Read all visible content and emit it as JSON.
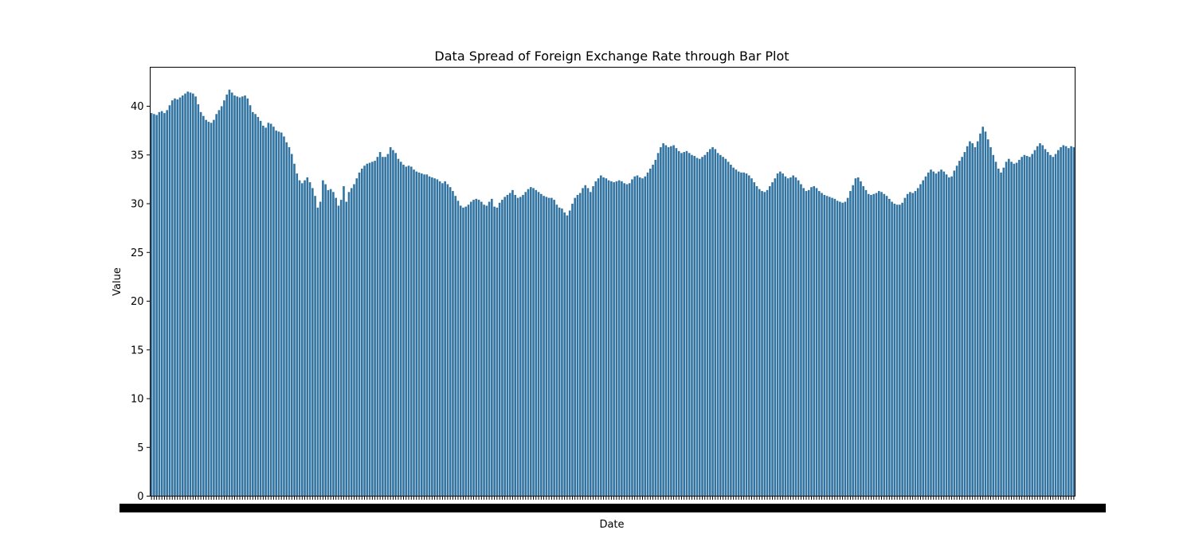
{
  "chart_data": {
    "type": "bar",
    "title": "Data Spread of Foreign Exchange Rate through Bar Plot",
    "xlabel": "Date",
    "ylabel": "Value",
    "ylim": [
      0,
      44
    ],
    "yticks": [
      "0",
      "5",
      "10",
      "15",
      "20",
      "25",
      "30",
      "35",
      "40"
    ],
    "bar_color": "#3274a1",
    "grid": false,
    "legend": "none",
    "categories_note": "",
    "values": [
      39.3,
      39.2,
      39.1,
      39.4,
      39.5,
      39.3,
      39.6,
      40.1,
      40.6,
      40.8,
      40.7,
      40.9,
      41.1,
      41.3,
      41.5,
      41.4,
      41.3,
      41.0,
      40.2,
      39.4,
      39.0,
      38.6,
      38.4,
      38.3,
      38.6,
      39.2,
      39.6,
      40.0,
      40.6,
      41.2,
      41.7,
      41.4,
      41.1,
      41.0,
      40.9,
      41.0,
      41.1,
      40.8,
      40.1,
      39.4,
      39.2,
      38.9,
      38.5,
      38.0,
      37.8,
      38.3,
      38.2,
      37.9,
      37.5,
      37.4,
      37.3,
      36.9,
      36.3,
      35.8,
      35.1,
      34.1,
      33.1,
      32.4,
      32.1,
      32.4,
      32.7,
      32.2,
      31.6,
      30.8,
      29.6,
      30.2,
      32.4,
      32.0,
      31.4,
      31.5,
      31.2,
      30.6,
      29.8,
      30.4,
      31.8,
      30.2,
      31.2,
      31.6,
      32.0,
      32.6,
      33.2,
      33.6,
      33.9,
      34.1,
      34.2,
      34.3,
      34.4,
      34.8,
      35.3,
      34.8,
      34.8,
      35.1,
      35.8,
      35.5,
      35.2,
      34.6,
      34.3,
      34.0,
      33.8,
      33.9,
      33.8,
      33.5,
      33.3,
      33.2,
      33.1,
      33.0,
      33.0,
      32.8,
      32.7,
      32.6,
      32.5,
      32.3,
      32.1,
      32.3,
      32.0,
      31.7,
      31.3,
      30.8,
      30.3,
      29.8,
      29.6,
      29.7,
      29.9,
      30.2,
      30.4,
      30.5,
      30.4,
      30.2,
      29.9,
      29.8,
      30.2,
      30.5,
      29.7,
      29.6,
      30.1,
      30.4,
      30.7,
      30.9,
      31.1,
      31.4,
      30.9,
      30.6,
      30.7,
      30.9,
      31.2,
      31.5,
      31.7,
      31.6,
      31.4,
      31.2,
      31.0,
      30.8,
      30.7,
      30.6,
      30.6,
      30.4,
      29.9,
      29.6,
      29.5,
      29.1,
      28.8,
      29.3,
      30.0,
      30.6,
      30.9,
      31.1,
      31.6,
      31.9,
      31.6,
      31.2,
      31.8,
      32.3,
      32.6,
      32.9,
      32.7,
      32.6,
      32.4,
      32.3,
      32.2,
      32.3,
      32.4,
      32.3,
      32.1,
      32.0,
      32.1,
      32.5,
      32.8,
      32.9,
      32.7,
      32.6,
      32.8,
      33.2,
      33.6,
      34.0,
      34.5,
      35.2,
      35.8,
      36.2,
      36.0,
      35.8,
      35.9,
      36.0,
      35.7,
      35.4,
      35.2,
      35.3,
      35.4,
      35.2,
      35.0,
      34.9,
      34.7,
      34.6,
      34.8,
      35.0,
      35.3,
      35.6,
      35.8,
      35.6,
      35.2,
      35.0,
      34.8,
      34.6,
      34.3,
      34.0,
      33.7,
      33.5,
      33.3,
      33.2,
      33.2,
      33.1,
      32.9,
      32.6,
      32.2,
      31.8,
      31.5,
      31.3,
      31.2,
      31.4,
      31.8,
      32.2,
      32.6,
      33.1,
      33.3,
      33.1,
      32.8,
      32.6,
      32.7,
      32.9,
      32.7,
      32.4,
      32.0,
      31.6,
      31.3,
      31.4,
      31.7,
      31.8,
      31.6,
      31.3,
      31.1,
      30.9,
      30.8,
      30.7,
      30.6,
      30.5,
      30.3,
      30.2,
      30.1,
      30.2,
      30.6,
      31.3,
      31.9,
      32.6,
      32.7,
      32.3,
      31.8,
      31.4,
      31.0,
      30.9,
      31.0,
      31.1,
      31.3,
      31.2,
      31.0,
      30.8,
      30.5,
      30.2,
      30.0,
      29.9,
      29.9,
      30.1,
      30.6,
      31.0,
      31.2,
      31.1,
      31.3,
      31.6,
      32.0,
      32.4,
      32.8,
      33.2,
      33.5,
      33.3,
      33.1,
      33.3,
      33.5,
      33.3,
      33.0,
      32.7,
      32.8,
      33.4,
      33.9,
      34.4,
      34.8,
      35.3,
      35.9,
      36.4,
      36.2,
      35.8,
      36.4,
      37.2,
      37.9,
      37.4,
      36.6,
      35.8,
      35.0,
      34.3,
      33.6,
      33.2,
      33.7,
      34.3,
      34.6,
      34.3,
      34.1,
      34.2,
      34.5,
      34.8,
      35.0,
      34.9,
      34.8,
      35.1,
      35.5,
      35.9,
      36.2,
      36.0,
      35.6,
      35.3,
      35.0,
      34.8,
      35.1,
      35.5,
      35.8,
      36.0,
      35.9,
      35.7,
      35.9,
      35.8
    ]
  }
}
